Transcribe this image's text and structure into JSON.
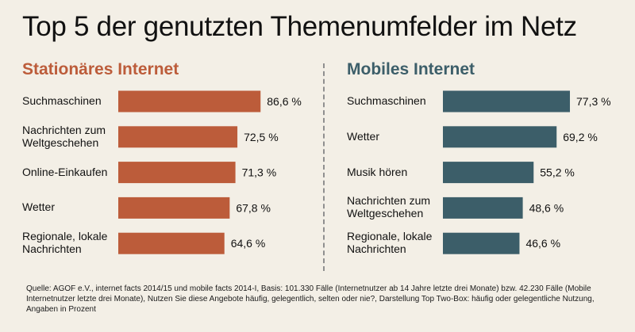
{
  "title": "Top 5 der genutzten Themenumfelder im Netz",
  "source": "Quelle: AGOF e.V., internet facts 2014/15 und mobile facts 2014-I, Basis: 101.330 Fälle (Internetnutzer ab 14 Jahre letzte drei Monate) bzw. 42.230 Fälle (Mobile Internetnutzer letzte drei Monate), Nutzen Sie diese Angebote häufig, gelegentlich, selten oder nie?, Darstellung Top Two-Box: häufig oder gelegentliche Nutzung, Angaben in Prozent",
  "colors": {
    "stationary": "#bc5c3a",
    "mobile": "#3c5e69"
  },
  "chart_data": [
    {
      "type": "bar",
      "orientation": "horizontal",
      "title": "Stationäres Internet",
      "categories": [
        "Suchmaschinen",
        "Nachrichten zum Weltgeschehen",
        "Online-Einkaufen",
        "Wetter",
        "Regionale, lokale Nachrichten"
      ],
      "category_lines": [
        [
          "Suchmaschinen"
        ],
        [
          "Nachrichten zum",
          "Weltgeschehen"
        ],
        [
          "Online-Einkaufen"
        ],
        [
          "Wetter"
        ],
        [
          "Regionale, lokale",
          "Nachrichten"
        ]
      ],
      "values": [
        86.6,
        72.5,
        71.3,
        67.8,
        64.6
      ],
      "value_labels": [
        "86,6 %",
        "72,5 %",
        "71,3 %",
        "67,8 %",
        "64,6 %"
      ],
      "xlim": [
        0,
        100
      ],
      "color": "#bc5c3a"
    },
    {
      "type": "bar",
      "orientation": "horizontal",
      "title": "Mobiles Internet",
      "categories": [
        "Suchmaschinen",
        "Wetter",
        "Musik hören",
        "Nachrichten zum Weltgeschehen",
        "Regionale, lokale Nachrichten"
      ],
      "category_lines": [
        [
          "Suchmaschinen"
        ],
        [
          "Wetter"
        ],
        [
          "Musik hören"
        ],
        [
          "Nachrichten zum",
          "Weltgeschehen"
        ],
        [
          "Regionale, lokale",
          "Nachrichten"
        ]
      ],
      "values": [
        77.3,
        69.2,
        55.2,
        48.6,
        46.6
      ],
      "value_labels": [
        "77,3 %",
        "69,2 %",
        "55,2 %",
        "48,6 %",
        "46,6 %"
      ],
      "xlim": [
        0,
        100
      ],
      "color": "#3c5e69"
    }
  ]
}
